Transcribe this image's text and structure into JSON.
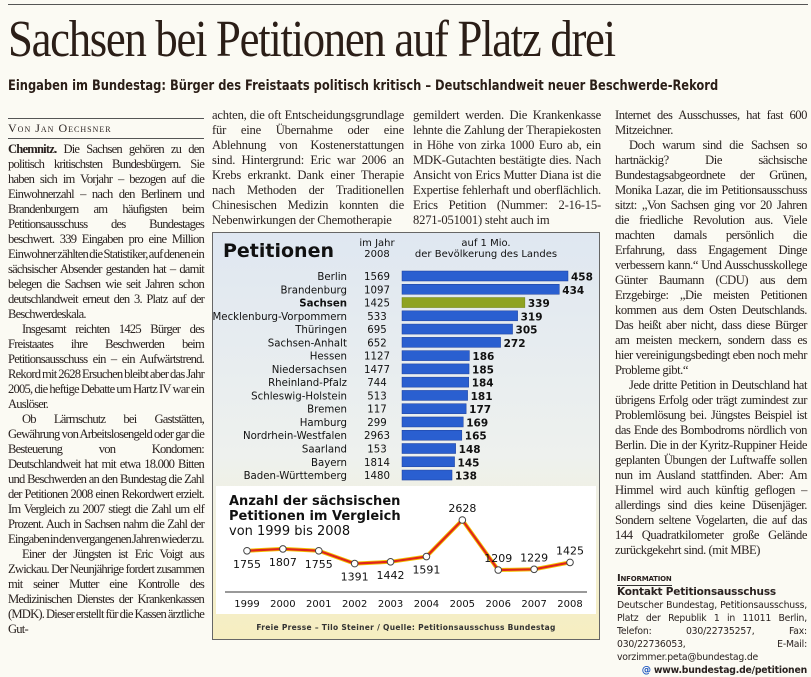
{
  "headline": "Sachsen bei Petitionen auf Platz drei",
  "subheadline": "Eingaben im Bundestag: Bürger des Freistaats politisch kritisch – Deutschlandweit neuer Beschwerde-Rekord",
  "byline": "Von Jan Oechsner",
  "columns": {
    "col1": {
      "dateline": "Chemnitz.",
      "p1": "Die Sachsen gehören zu den politisch kritischsten Bundesbürgern. Sie haben sich im Vorjahr – bezogen auf die Einwohnerzahl – nach den Berlinern und Brandenburgern am häufigsten beim Petitionsausschuss des Bundestages beschwert. 339 Eingaben pro eine Million Einwohner zählten die Statistiker, auf denen ein sächsischer Absender gestanden hat – damit belegen die Sachsen wie seit Jahren schon deutschlandweit erneut den 3. Platz auf der Beschwerdeskala.",
      "p2": "Insgesamt reichten 1425 Bürger des Freistaates ihre Beschwerden beim Petitionsausschuss ein – ein Aufwärtstrend. Rekord mit 2628 Ersuchen bleibt aber das Jahr 2005, die heftige Debatte um Hartz IV war ein Auslöser.",
      "p3": "Ob Lärmschutz bei Gaststätten, Gewährung von Arbeitslosengeld oder gar die Besteuerung von Kondomen: Deutschlandweit hat mit etwa 18.000 Bitten und Beschwerden an den Bundestag die Zahl der Petitionen 2008 einen Rekordwert erzielt. Im Vergleich zu 2007 stiegt die Zahl um elf Prozent. Auch in Sachsen nahm die Zahl der Eingaben in den vergangenen Jahren wieder zu.",
      "p4": "Einer der Jüngsten ist Eric Voigt aus Zwickau. Der Neunjährige fordert zusammen mit seiner Mutter eine Kontrolle des Medizinischen Dienstes der Krankenkassen (MDK). Dieser erstellt für die Kassen ärztliche Gut-"
    },
    "col2": "achten, die oft Entscheidungsgrundlage für eine Übernahme oder eine Ablehnung von Kostenerstattungen sind. Hintergrund: Eric war 2006 an Krebs erkrankt. Dank einer Therapie nach Methoden der Traditionellen Chinesischen Medizin konnten die Nebenwirkungen der Chemotherapie",
    "col3": "gemildert werden. Die Krankenkasse lehnte die Zahlung der Therapiekosten in Höhe von zirka 1000 Euro ab, ein MDK-Gutachten bestätigte dies. Nach Ansicht von Erics Mutter Diana ist die Expertise fehlerhaft und oberflächlich. Erics Petition (Nummer: 2-16-15-8271-051001) steht auch im",
    "col4": {
      "p1": "Internet des Ausschusses, hat fast 600 Mitzeichner.",
      "p2": "Doch warum sind die Sachsen so hartnäckig? Die sächsische Bundestagsabgeordnete der Grünen, Monika Lazar, die im Petitionsausschuss sitzt: „Von Sachsen ging vor 20 Jahren die friedliche Revolution aus. Viele machten damals persönlich die Erfahrung, dass Engagement Dinge verbessern kann.“ Und Ausschusskollege Günter Baumann (CDU) aus dem Erzgebirge: „Die meisten Petitionen kommen aus dem Osten Deutschlands. Das heißt aber nicht, dass diese Bürger am meisten meckern, sondern dass es hier vereinigungsbedingt eben noch mehr Probleme gibt.“",
      "p3": "Jede dritte Petition in Deutschland hat übrigens Erfolg oder trägt zumindest zur Problemlösung bei. Jüngstes Beispiel ist das Ende des Bombodroms nördlich von Berlin. Die in der Kyritz-Ruppiner Heide geplanten Übungen der Luftwaffe sollen nun im Ausland stattfinden. Aber: Am Himmel wird auch künftig geflogen – allerdings sind dies keine Düsenjäger. Sondern seltene Vogelarten, die auf das 144 Quadratkilometer große Gelände zurückgekehrt sind. (mit MBE)"
    }
  },
  "info": {
    "label": "Information",
    "title": "Kontakt Petitionsausschuss",
    "body": "Deutscher Bundestag, Petitionsausschuss, Platz der Republik 1 in 11011 Berlin, Telefon: 030/22735257, Fax: 030/22736053, E-Mail: vorzimmer.peta@bundestag.de",
    "at_icon": "@",
    "web": "www.bundestag.de/petitionen"
  },
  "chart_data": [
    {
      "type": "bar",
      "title": "Petitionen",
      "count_header_1": "im Jahr",
      "count_header_2": "2008",
      "value_header_1": "auf 1 Mio.",
      "value_header_2": "der Bevölkerung des Landes",
      "categories": [
        "Berlin",
        "Brandenburg",
        "Sachsen",
        "Mecklenburg-Vorpommern",
        "Thüringen",
        "Sachsen-Anhalt",
        "Hessen",
        "Niedersachsen",
        "Rheinland-Pfalz",
        "Schleswig-Holstein",
        "Bremen",
        "Hamburg",
        "Nordrhein-Westfalen",
        "Saarland",
        "Bayern",
        "Baden-Württemberg"
      ],
      "counts_2008": [
        1569,
        1097,
        1425,
        533,
        695,
        652,
        1127,
        1477,
        744,
        513,
        117,
        299,
        2963,
        153,
        1814,
        1480
      ],
      "values": [
        458,
        434,
        339,
        319,
        305,
        272,
        186,
        185,
        184,
        181,
        177,
        169,
        165,
        148,
        145,
        138
      ],
      "highlight": "Sachsen",
      "colors": {
        "bar": "#2a5fd0",
        "highlight": "#8fa321"
      }
    },
    {
      "type": "line",
      "title_line1": "Anzahl der sächsischen",
      "title_line2": "Petitionen im Vergleich",
      "subtitle": "von 1999 bis 2008",
      "x": [
        "1999",
        "2000",
        "2001",
        "2002",
        "2003",
        "2004",
        "2005",
        "2006",
        "2007",
        "2008"
      ],
      "values": [
        1755,
        1807,
        1755,
        1391,
        1442,
        1591,
        2628,
        1209,
        1229,
        1425
      ],
      "colors": {
        "line": "#e0241b"
      }
    }
  ],
  "credit": "Freie Presse – Tilo Steiner / Quelle: Petitionsausschuss Bundestag"
}
